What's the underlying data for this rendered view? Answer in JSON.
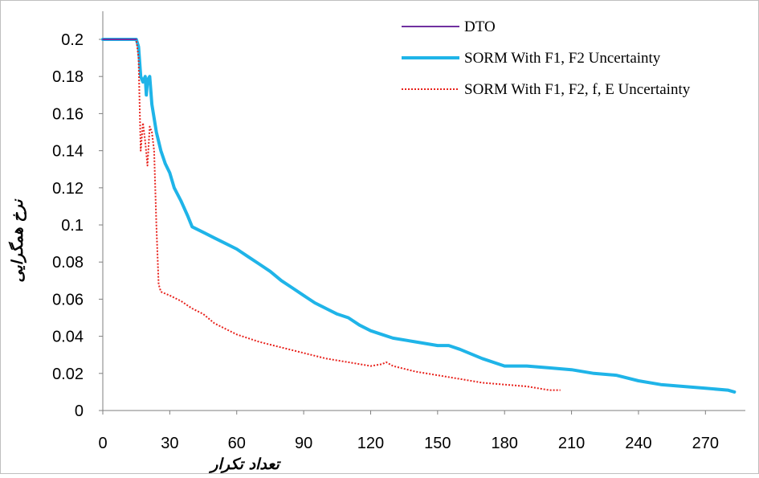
{
  "chart_data": {
    "type": "line",
    "xlabel": "تعداد تکرار",
    "ylabel": "نرخ همگرایی",
    "xlim": [
      0,
      285
    ],
    "ylim": [
      0,
      0.2
    ],
    "x_ticks": [
      0,
      30,
      60,
      90,
      120,
      150,
      180,
      210,
      240,
      270
    ],
    "x_tick_labels": [
      "0",
      "30",
      "60",
      "90",
      "120",
      "150",
      "180",
      "210",
      "240",
      "270"
    ],
    "y_ticks": [
      0,
      0.02,
      0.04,
      0.06,
      0.08,
      0.1,
      0.12,
      0.14,
      0.16,
      0.18,
      0.2
    ],
    "y_tick_labels": [
      "0",
      "0.02",
      "0.04",
      "0.06",
      "0.08",
      "0.1",
      "0.12",
      "0.14",
      "0.16",
      "0.18",
      "0.2"
    ],
    "grid": false,
    "legend_position": "top-right",
    "series": [
      {
        "name": "DTO",
        "color": "#7030a0",
        "style": "solid",
        "points": [
          [
            0,
            0.2
          ],
          [
            15,
            0.2
          ]
        ]
      },
      {
        "name": "SORM With F1, F2 Uncertainty",
        "color": "#1fb4e8",
        "style": "solid-thick",
        "points": [
          [
            0,
            0.2
          ],
          [
            15,
            0.2
          ],
          [
            16,
            0.196
          ],
          [
            17,
            0.18
          ],
          [
            18,
            0.177
          ],
          [
            19,
            0.18
          ],
          [
            19.5,
            0.17
          ],
          [
            20,
            0.178
          ],
          [
            21,
            0.18
          ],
          [
            22,
            0.165
          ],
          [
            24,
            0.15
          ],
          [
            26,
            0.14
          ],
          [
            28,
            0.133
          ],
          [
            30,
            0.128
          ],
          [
            32,
            0.12
          ],
          [
            35,
            0.113
          ],
          [
            38,
            0.105
          ],
          [
            40,
            0.099
          ],
          [
            45,
            0.096
          ],
          [
            50,
            0.093
          ],
          [
            55,
            0.09
          ],
          [
            60,
            0.087
          ],
          [
            65,
            0.083
          ],
          [
            70,
            0.079
          ],
          [
            75,
            0.075
          ],
          [
            80,
            0.07
          ],
          [
            85,
            0.066
          ],
          [
            90,
            0.062
          ],
          [
            95,
            0.058
          ],
          [
            100,
            0.055
          ],
          [
            105,
            0.052
          ],
          [
            110,
            0.05
          ],
          [
            115,
            0.046
          ],
          [
            120,
            0.043
          ],
          [
            125,
            0.041
          ],
          [
            130,
            0.039
          ],
          [
            140,
            0.037
          ],
          [
            150,
            0.035
          ],
          [
            155,
            0.035
          ],
          [
            160,
            0.033
          ],
          [
            170,
            0.028
          ],
          [
            180,
            0.024
          ],
          [
            190,
            0.024
          ],
          [
            200,
            0.023
          ],
          [
            210,
            0.022
          ],
          [
            220,
            0.02
          ],
          [
            230,
            0.019
          ],
          [
            240,
            0.016
          ],
          [
            250,
            0.014
          ],
          [
            260,
            0.013
          ],
          [
            270,
            0.012
          ],
          [
            280,
            0.011
          ],
          [
            283,
            0.01
          ]
        ]
      },
      {
        "name": "SORM With F1, F2, f, E Uncertainty",
        "color": "#e8221c",
        "style": "dotted",
        "points": [
          [
            0,
            0.2
          ],
          [
            15,
            0.2
          ],
          [
            16,
            0.19
          ],
          [
            17,
            0.14
          ],
          [
            18,
            0.155
          ],
          [
            19,
            0.145
          ],
          [
            20,
            0.132
          ],
          [
            21,
            0.153
          ],
          [
            22,
            0.15
          ],
          [
            23,
            0.14
          ],
          [
            24,
            0.1
          ],
          [
            25,
            0.068
          ],
          [
            26,
            0.064
          ],
          [
            30,
            0.062
          ],
          [
            35,
            0.059
          ],
          [
            40,
            0.055
          ],
          [
            45,
            0.052
          ],
          [
            50,
            0.047
          ],
          [
            55,
            0.044
          ],
          [
            60,
            0.041
          ],
          [
            70,
            0.037
          ],
          [
            80,
            0.034
          ],
          [
            90,
            0.031
          ],
          [
            100,
            0.028
          ],
          [
            110,
            0.026
          ],
          [
            120,
            0.024
          ],
          [
            125,
            0.025
          ],
          [
            127,
            0.026
          ],
          [
            130,
            0.024
          ],
          [
            140,
            0.021
          ],
          [
            150,
            0.019
          ],
          [
            160,
            0.017
          ],
          [
            170,
            0.015
          ],
          [
            180,
            0.014
          ],
          [
            190,
            0.013
          ],
          [
            200,
            0.011
          ],
          [
            205,
            0.011
          ]
        ]
      }
    ]
  }
}
